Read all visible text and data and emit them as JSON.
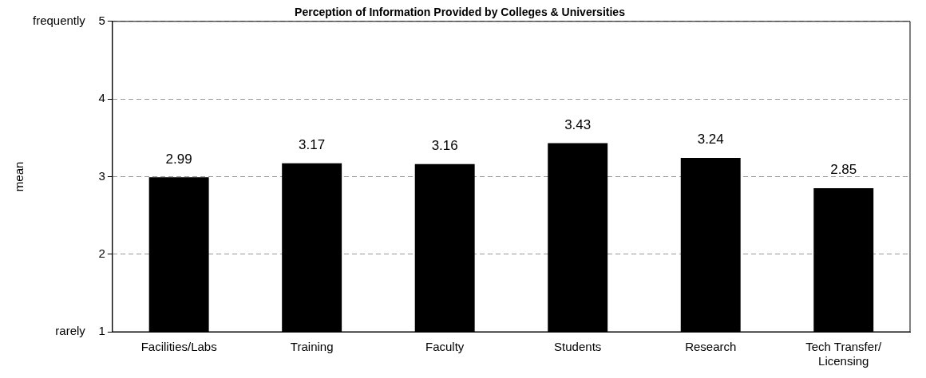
{
  "chart_data": {
    "type": "bar",
    "title": "Perception of Information Provided by Colleges & Universities",
    "ylabel": "mean",
    "categories": [
      "Facilities/Labs",
      "Training",
      "Faculty",
      "Students",
      "Research",
      "Tech Transfer/\nLicensing"
    ],
    "values": [
      2.99,
      3.17,
      3.16,
      3.43,
      3.24,
      2.85
    ],
    "color": "#000000",
    "ylim": [
      1,
      5
    ],
    "yticks": [
      {
        "value": 1,
        "label": "rarely    1"
      },
      2,
      3,
      4,
      {
        "value": 5,
        "label": "frequently    5"
      }
    ],
    "grid": "y",
    "data_labels": true,
    "legend": false
  }
}
